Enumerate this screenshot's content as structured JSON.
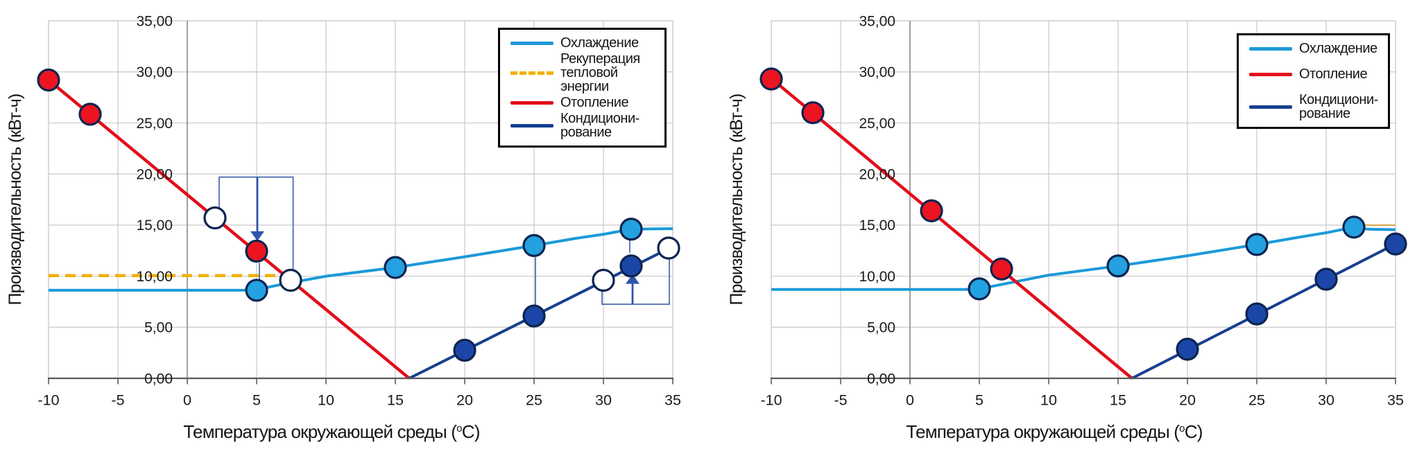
{
  "chart_data": [
    {
      "type": "line",
      "panel": "left",
      "ylabel": "Производительность (кВт-ч)",
      "xlabel_pre": "Температура окружающей среды (",
      "xlabel_sup": "о",
      "xlabel_post": "С)",
      "xlim": [
        -10,
        35
      ],
      "ylim": [
        0,
        35
      ],
      "grid": true,
      "legend_position": "top-right",
      "x_ticks": [
        {
          "v": -10,
          "label": "-10"
        },
        {
          "v": -5,
          "label": "-5"
        },
        {
          "v": 0,
          "label": "0"
        },
        {
          "v": 5,
          "label": "5"
        },
        {
          "v": 10,
          "label": "10"
        },
        {
          "v": 15,
          "label": "15"
        },
        {
          "v": 20,
          "label": "20"
        },
        {
          "v": 25,
          "label": "25"
        },
        {
          "v": 30,
          "label": "30"
        },
        {
          "v": 35,
          "label": "35"
        }
      ],
      "y_ticks": [
        {
          "v": 0,
          "label": "0,00"
        },
        {
          "v": 5,
          "label": "5,00"
        },
        {
          "v": 10,
          "label": "10,00"
        },
        {
          "v": 15,
          "label": "15,00"
        },
        {
          "v": 20,
          "label": "20,00"
        },
        {
          "v": 25,
          "label": "25,00"
        },
        {
          "v": 30,
          "label": "30,00"
        },
        {
          "v": 35,
          "label": "35,00"
        }
      ],
      "series": [
        {
          "name": "Охлаждение",
          "color": "#1b9ad8",
          "width": 4,
          "points": [
            [
              -10,
              8.62
            ],
            [
              0,
              8.62
            ],
            [
              4,
              8.62
            ],
            [
              5,
              8.68
            ],
            [
              7,
              9.25
            ],
            [
              10,
              10.0
            ],
            [
              15,
              10.85
            ],
            [
              20,
              11.9
            ],
            [
              25,
              13.0
            ],
            [
              28,
              13.7
            ],
            [
              30,
              14.1
            ],
            [
              32,
              14.6
            ],
            [
              35,
              14.65
            ]
          ]
        },
        {
          "name": "Рекуперация тепловой энергии",
          "color": "#f0b000",
          "width": 4.5,
          "dash": "15 9",
          "points": [
            [
              -10,
              10.05
            ],
            [
              6.6,
              10.05
            ]
          ]
        },
        {
          "name": "Отопление",
          "color": "#e30d1a",
          "width": 4.5,
          "points": [
            [
              -10,
              29.2
            ],
            [
              16,
              0
            ]
          ]
        },
        {
          "name": "Кондиционирование",
          "color": "#163f8f",
          "width": 4,
          "points": [
            [
              16,
              0
            ],
            [
              35,
              12.9
            ]
          ]
        }
      ],
      "marker_groups": [
        {
          "name": "heating-points",
          "fill": "#ec1420",
          "points": [
            [
              -10,
              29.2
            ],
            [
              -7,
              25.85
            ],
            [
              5,
              12.45
            ]
          ]
        },
        {
          "name": "cooling-points",
          "fill": "#23a1e0",
          "points": [
            [
              5,
              8.62
            ],
            [
              15,
              10.85
            ],
            [
              25,
              13.0
            ],
            [
              32,
              14.6
            ]
          ]
        },
        {
          "name": "conditioning-points",
          "fill": "#1b46a8",
          "points": [
            [
              20,
              2.75
            ],
            [
              25,
              6.1
            ],
            [
              32,
              11.0
            ]
          ]
        },
        {
          "name": "result-points",
          "fill": "#ffffff",
          "points": [
            [
              2,
              15.7
            ],
            [
              7.45,
              9.6
            ],
            [
              30,
              9.6
            ],
            [
              34.7,
              12.75
            ]
          ]
        }
      ],
      "annotations": {
        "polylines": [
          [
            [
              2.3,
              16.6
            ],
            [
              2.3,
              19.7
            ],
            [
              7.63,
              19.7
            ],
            [
              7.63,
              10.6
            ]
          ],
          [
            [
              5.2,
              11.3
            ],
            [
              5.2,
              9.15
            ]
          ],
          [
            [
              25.1,
              11.85
            ],
            [
              25.1,
              7.0
            ]
          ],
          [
            [
              29.9,
              8.7
            ],
            [
              29.9,
              7.25
            ],
            [
              34.75,
              7.25
            ],
            [
              34.75,
              11.85
            ]
          ],
          [
            [
              31.9,
              13.8
            ],
            [
              31.9,
              12.3
            ]
          ]
        ],
        "arrows": [
          {
            "x": 5.05,
            "from": 19.7,
            "tip": 13.45,
            "dir": "down"
          },
          {
            "x": 32.1,
            "from": 7.25,
            "tip": 10.2,
            "dir": "up"
          }
        ]
      },
      "legend": {
        "items": [
          {
            "lines": [
              "Охлаждение"
            ],
            "color": "#1b9ad8",
            "dash": false
          },
          {
            "lines": [
              "Рекуперация",
              "тепловой",
              "энергии"
            ],
            "color": "#f0b000",
            "dash": true
          },
          {
            "lines": [
              "Отопление"
            ],
            "color": "#e30d1a",
            "dash": false
          },
          {
            "lines": [
              "Кондициони-",
              "рование"
            ],
            "color": "#163f8f",
            "dash": false
          }
        ]
      }
    },
    {
      "type": "line",
      "panel": "right",
      "ylabel": "Производительность (кВт-ч)",
      "xlabel_pre": "Температура окружающей среды (",
      "xlabel_sup": "о",
      "xlabel_post": "С)",
      "xlim": [
        -10,
        35
      ],
      "ylim": [
        0,
        35
      ],
      "grid": true,
      "legend_position": "top-right",
      "x_ticks": [
        {
          "v": -10,
          "label": "-10"
        },
        {
          "v": -5,
          "label": "-5"
        },
        {
          "v": 0,
          "label": "0"
        },
        {
          "v": 5,
          "label": "5"
        },
        {
          "v": 10,
          "label": "10"
        },
        {
          "v": 15,
          "label": "15"
        },
        {
          "v": 20,
          "label": "20"
        },
        {
          "v": 25,
          "label": "25"
        },
        {
          "v": 30,
          "label": "30"
        },
        {
          "v": 35,
          "label": "35"
        }
      ],
      "y_ticks": [
        {
          "v": 0,
          "label": "0,00"
        },
        {
          "v": 5,
          "label": "5,00"
        },
        {
          "v": 10,
          "label": "10,00"
        },
        {
          "v": 15,
          "label": "15,00"
        },
        {
          "v": 20,
          "label": "20,00"
        },
        {
          "v": 25,
          "label": "25,00"
        },
        {
          "v": 30,
          "label": "30,00"
        },
        {
          "v": 35,
          "label": "35,00"
        }
      ],
      "series": [
        {
          "name": "trace-artifact",
          "color": "#d8a24a",
          "width": 2,
          "points": [
            [
              32.4,
              15.0
            ],
            [
              35,
              15.0
            ]
          ]
        },
        {
          "name": "Охлаждение",
          "color": "#1b9ad8",
          "width": 4,
          "points": [
            [
              -10,
              8.7
            ],
            [
              0,
              8.7
            ],
            [
              4,
              8.7
            ],
            [
              5,
              8.76
            ],
            [
              7,
              9.3
            ],
            [
              10,
              10.1
            ],
            [
              15,
              11.0
            ],
            [
              20,
              12.0
            ],
            [
              25,
              13.1
            ],
            [
              28,
              13.8
            ],
            [
              30,
              14.25
            ],
            [
              32,
              14.8
            ],
            [
              33,
              14.6
            ],
            [
              35,
              14.55
            ]
          ]
        },
        {
          "name": "Отопление",
          "color": "#e30d1a",
          "width": 4.5,
          "points": [
            [
              -10,
              29.35
            ],
            [
              16,
              0
            ]
          ]
        },
        {
          "name": "Кондиционирование",
          "color": "#163f8f",
          "width": 4,
          "points": [
            [
              16,
              0
            ],
            [
              35,
              13.15
            ]
          ]
        }
      ],
      "marker_groups": [
        {
          "name": "heating-points",
          "fill": "#ec1420",
          "points": [
            [
              -10,
              29.3
            ],
            [
              -7,
              26.0
            ],
            [
              1.55,
              16.4
            ],
            [
              6.6,
              10.7
            ]
          ]
        },
        {
          "name": "cooling-points",
          "fill": "#23a1e0",
          "points": [
            [
              5,
              8.76
            ],
            [
              15,
              11.0
            ],
            [
              25,
              13.1
            ],
            [
              32,
              14.8
            ]
          ]
        },
        {
          "name": "conditioning-points",
          "fill": "#1b46a8",
          "points": [
            [
              20,
              2.85
            ],
            [
              25,
              6.3
            ],
            [
              30,
              9.7
            ],
            [
              35,
              13.15
            ]
          ]
        }
      ],
      "annotations": {
        "polylines": [],
        "arrows": []
      },
      "legend": {
        "items": [
          {
            "lines": [
              "Охлаждение"
            ],
            "color": "#1b9ad8",
            "dash": false
          },
          {
            "lines": [
              "Отопление"
            ],
            "color": "#e30d1a",
            "dash": false
          },
          {
            "lines": [
              "Кондициони-",
              "рование"
            ],
            "color": "#163f8f",
            "dash": false
          }
        ]
      }
    }
  ],
  "style_colors": {
    "grid": "#c9c9c9",
    "value_axis": "#8a8a8a",
    "bottom_axis": "#5a5a5a",
    "marker_stroke": "#0d2450",
    "annotation_line": "#3b5caa",
    "annotation_arrow": "#2e55ad"
  }
}
